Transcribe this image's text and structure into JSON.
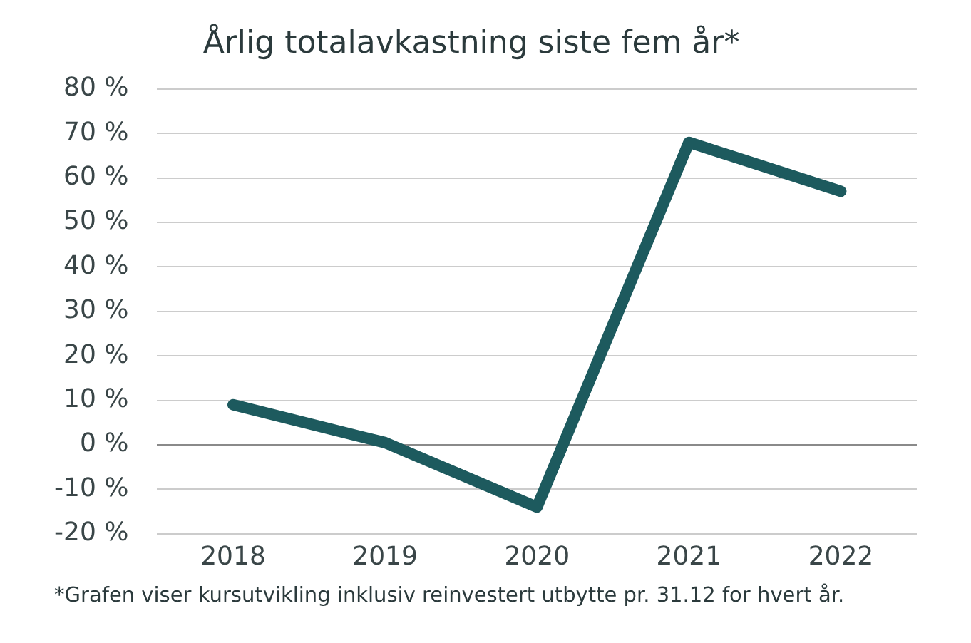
{
  "chart_data": {
    "type": "line",
    "title": "Årlig totalavkastning siste fem år*",
    "categories": [
      "2018",
      "2019",
      "2020",
      "2021",
      "2022"
    ],
    "series": [
      {
        "color": "#1d5a5e",
        "values": [
          9,
          0.5,
          -14,
          68,
          57
        ]
      }
    ],
    "ylim": [
      -20,
      80
    ],
    "yticks": [
      {
        "value": -20,
        "label": "-20 %"
      },
      {
        "value": -10,
        "label": "-10 %"
      },
      {
        "value": 0,
        "label": "0 %"
      },
      {
        "value": 10,
        "label": "10 %"
      },
      {
        "value": 20,
        "label": "20 %"
      },
      {
        "value": 30,
        "label": "30 %"
      },
      {
        "value": 40,
        "label": "40 %"
      },
      {
        "value": 50,
        "label": "50 %"
      },
      {
        "value": 60,
        "label": "60 %"
      },
      {
        "value": 70,
        "label": "70 %"
      },
      {
        "value": 80,
        "label": "80 %"
      }
    ],
    "grid": "y",
    "legend": false,
    "marker": "none",
    "line_style": "solid",
    "annotations": [
      "*Grafen viser kursutvikling inklusiv reinvestert utbytte pr. 31.12 for hvert år."
    ]
  }
}
